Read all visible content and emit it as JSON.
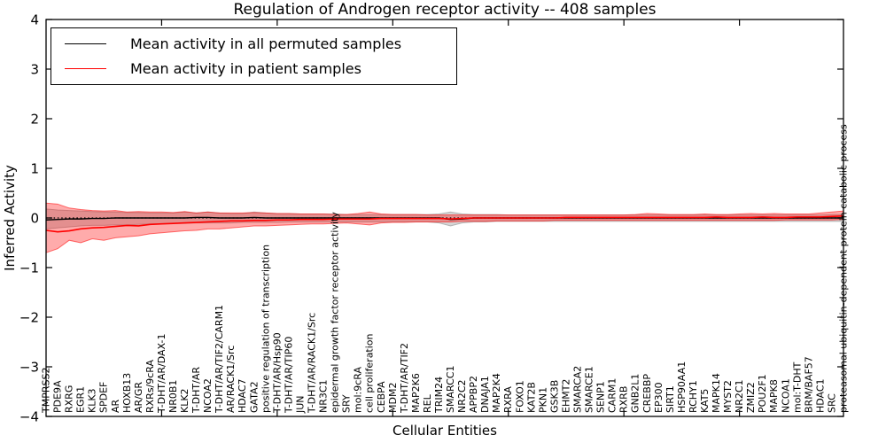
{
  "title": "Regulation of Androgen receptor activity -- 408 samples",
  "legend": [
    {
      "label": "Mean activity in all permuted samples",
      "color": "#000000"
    },
    {
      "label": "Mean activity in patient samples",
      "color": "#ff0000"
    }
  ],
  "chart_data": {
    "type": "line",
    "title": "Regulation of Androgen receptor activity -- 408 samples",
    "xlabel": "Cellular Entities",
    "ylabel": "Inferred Activity",
    "ylim": [
      -4,
      4
    ],
    "yticks": [
      4,
      3,
      2,
      1,
      0,
      -1,
      -2,
      -3,
      -4
    ],
    "ytick_labels": [
      "4",
      "3",
      "2",
      "1",
      "0",
      "−1",
      "−2",
      "−3",
      "−4"
    ],
    "x_major_tick_indices": [
      10,
      20,
      30,
      40,
      50,
      60
    ],
    "grid": false,
    "legend_position": "upper left",
    "zero_line": {
      "style": "dotted",
      "color": "#000000",
      "y": 0
    },
    "categories": [
      "TMPRSS2",
      "PDE9A",
      "RXRG",
      "EGR1",
      "KLK3",
      "SPDEF",
      "AR",
      "HOXB13",
      "AR/GR",
      "RXRs/9cRA",
      "T-DHT/AR/DAX-1",
      "NR0B1",
      "KLK2",
      "T-DHT/AR",
      "NCOA2",
      "T-DHT/AR/TIF2/CARM1",
      "AR/RACK1/Src",
      "HDAC7",
      "GATA2",
      "positive regulation of transcription",
      "T-DHT/AR/Hsp90",
      "T-DHT/AR/TIP60",
      "JUN",
      "T-DHT/AR/RACK1/Src",
      "NR3C1",
      "epidermal growth factor receptor activity",
      "SRY",
      "mol:9cRA",
      "cell proliferation",
      "CEBPA",
      "MDM2",
      "T-DHT/AR/TIF2",
      "MAP2K6",
      "REL",
      "TRIM24",
      "SMARCC1",
      "NR2C2",
      "APPBP2",
      "DNAJA1",
      "MAP2K4",
      "RXRA",
      "FOXO1",
      "KAT2B",
      "PKN1",
      "GSK3B",
      "EHMT2",
      "SMARCA2",
      "SMARCE1",
      "SENP1",
      "CARM1",
      "RXRB",
      "GNB2L1",
      "CREBBP",
      "EP300",
      "SIRT1",
      "HSP90AA1",
      "RCHY1",
      "KAT5",
      "MAPK14",
      "MYST2",
      "NR2C1",
      "ZMIZ2",
      "POU2F1",
      "MAPK8",
      "NCOA1",
      "mol:T-DHT",
      "BRM/BAF57",
      "HDAC1",
      "SRC",
      "proteasomal ubiquitin-dependent protein catabolic process"
    ],
    "series": [
      {
        "name": "Mean activity in all permuted samples",
        "color": "#000000",
        "values": [
          -0.04,
          -0.03,
          -0.02,
          -0.02,
          -0.01,
          -0.01,
          0.0,
          0.0,
          0.0,
          0.0,
          0.0,
          0.0,
          0.0,
          0.01,
          0.01,
          0.0,
          0.0,
          0.0,
          0.01,
          0.0,
          0.0,
          0.0,
          0.0,
          0.0,
          0.0,
          0.0,
          0.0,
          0.0,
          0.0,
          0.0,
          0.0,
          0.0,
          0.0,
          0.0,
          0.0,
          -0.03,
          -0.02,
          0.0,
          0.0,
          0.0,
          0.0,
          0.0,
          0.0,
          0.0,
          0.0,
          0.0,
          0.0,
          0.0,
          0.0,
          0.0,
          0.0,
          0.0,
          0.0,
          0.0,
          0.0,
          0.0,
          0.0,
          0.0,
          0.0,
          0.0,
          0.0,
          0.0,
          0.0,
          0.0,
          0.0,
          0.0,
          0.0,
          0.0,
          0.0,
          0.0
        ]
      },
      {
        "name": "Mean activity in patient samples",
        "color": "#ff0000",
        "values": [
          -0.25,
          -0.28,
          -0.26,
          -0.22,
          -0.2,
          -0.19,
          -0.17,
          -0.15,
          -0.16,
          -0.13,
          -0.12,
          -0.11,
          -0.1,
          -0.09,
          -0.08,
          -0.07,
          -0.06,
          -0.06,
          -0.05,
          -0.05,
          -0.04,
          -0.04,
          -0.03,
          -0.03,
          -0.03,
          -0.02,
          -0.02,
          -0.02,
          -0.02,
          -0.01,
          -0.01,
          -0.01,
          -0.01,
          -0.01,
          -0.01,
          -0.02,
          -0.01,
          0.0,
          0.0,
          0.0,
          0.0,
          0.0,
          0.0,
          0.0,
          0.0,
          0.01,
          0.01,
          0.01,
          0.01,
          0.01,
          0.01,
          0.01,
          0.01,
          0.01,
          0.01,
          0.01,
          0.01,
          0.01,
          0.02,
          0.01,
          0.01,
          0.01,
          0.02,
          0.01,
          0.01,
          0.02,
          0.02,
          0.02,
          0.03,
          0.04
        ]
      }
    ],
    "bands": [
      {
        "name": "permuted samples range",
        "color": "#808080",
        "fill_opacity": 0.33,
        "edge_opacity": 0.5,
        "upper": [
          0.18,
          0.16,
          0.15,
          0.14,
          0.13,
          0.12,
          0.12,
          0.11,
          0.11,
          0.1,
          0.1,
          0.1,
          0.12,
          0.1,
          0.12,
          0.1,
          0.09,
          0.09,
          0.12,
          0.1,
          0.09,
          0.09,
          0.08,
          0.08,
          0.08,
          0.08,
          0.07,
          0.07,
          0.07,
          0.07,
          0.07,
          0.07,
          0.07,
          0.07,
          0.08,
          0.12,
          0.08,
          0.07,
          0.07,
          0.07,
          0.06,
          0.06,
          0.06,
          0.06,
          0.06,
          0.06,
          0.06,
          0.06,
          0.06,
          0.06,
          0.06,
          0.06,
          0.06,
          0.06,
          0.06,
          0.06,
          0.06,
          0.06,
          0.06,
          0.06,
          0.06,
          0.06,
          0.06,
          0.06,
          0.06,
          0.06,
          0.06,
          0.06,
          0.07,
          0.07
        ],
        "lower": [
          -0.22,
          -0.2,
          -0.18,
          -0.16,
          -0.15,
          -0.15,
          -0.14,
          -0.14,
          -0.13,
          -0.12,
          -0.12,
          -0.11,
          -0.11,
          -0.1,
          -0.1,
          -0.1,
          -0.1,
          -0.09,
          -0.09,
          -0.09,
          -0.09,
          -0.08,
          -0.08,
          -0.08,
          -0.08,
          -0.08,
          -0.08,
          -0.08,
          -0.08,
          -0.08,
          -0.08,
          -0.08,
          -0.08,
          -0.08,
          -0.1,
          -0.16,
          -0.1,
          -0.08,
          -0.08,
          -0.07,
          -0.07,
          -0.07,
          -0.07,
          -0.07,
          -0.07,
          -0.07,
          -0.07,
          -0.07,
          -0.07,
          -0.07,
          -0.07,
          -0.07,
          -0.07,
          -0.07,
          -0.07,
          -0.07,
          -0.07,
          -0.07,
          -0.07,
          -0.07,
          -0.07,
          -0.07,
          -0.07,
          -0.07,
          -0.07,
          -0.07,
          -0.07,
          -0.07,
          -0.07,
          -0.07
        ]
      },
      {
        "name": "patient samples range",
        "color": "#ff0000",
        "fill_opacity": 0.33,
        "edge_opacity": 0.55,
        "upper": [
          0.3,
          0.28,
          0.2,
          0.17,
          0.15,
          0.14,
          0.15,
          0.12,
          0.13,
          0.12,
          0.12,
          0.11,
          0.13,
          0.1,
          0.12,
          0.1,
          0.1,
          0.1,
          0.11,
          0.1,
          0.09,
          0.09,
          0.08,
          0.08,
          0.08,
          0.07,
          0.07,
          0.09,
          0.12,
          0.08,
          0.07,
          0.07,
          0.07,
          0.06,
          0.06,
          0.06,
          0.06,
          0.06,
          0.06,
          0.06,
          0.06,
          0.06,
          0.06,
          0.06,
          0.06,
          0.06,
          0.06,
          0.06,
          0.06,
          0.06,
          0.06,
          0.07,
          0.09,
          0.08,
          0.07,
          0.07,
          0.07,
          0.08,
          0.07,
          0.07,
          0.08,
          0.09,
          0.08,
          0.09,
          0.08,
          0.08,
          0.08,
          0.1,
          0.12,
          0.14
        ],
        "lower": [
          -0.7,
          -0.62,
          -0.45,
          -0.5,
          -0.42,
          -0.45,
          -0.4,
          -0.38,
          -0.36,
          -0.32,
          -0.3,
          -0.28,
          -0.26,
          -0.25,
          -0.22,
          -0.22,
          -0.2,
          -0.18,
          -0.16,
          -0.16,
          -0.15,
          -0.14,
          -0.13,
          -0.12,
          -0.12,
          -0.11,
          -0.1,
          -0.12,
          -0.14,
          -0.1,
          -0.09,
          -0.09,
          -0.08,
          -0.08,
          -0.08,
          -0.08,
          -0.07,
          -0.07,
          -0.07,
          -0.06,
          -0.06,
          -0.06,
          -0.06,
          -0.06,
          -0.05,
          -0.05,
          -0.05,
          -0.05,
          -0.05,
          -0.05,
          -0.05,
          -0.05,
          -0.05,
          -0.05,
          -0.05,
          -0.05,
          -0.05,
          -0.05,
          -0.05,
          -0.05,
          -0.05,
          -0.05,
          -0.05,
          -0.05,
          -0.04,
          -0.04,
          -0.04,
          -0.04,
          -0.04,
          -0.03
        ]
      }
    ]
  }
}
